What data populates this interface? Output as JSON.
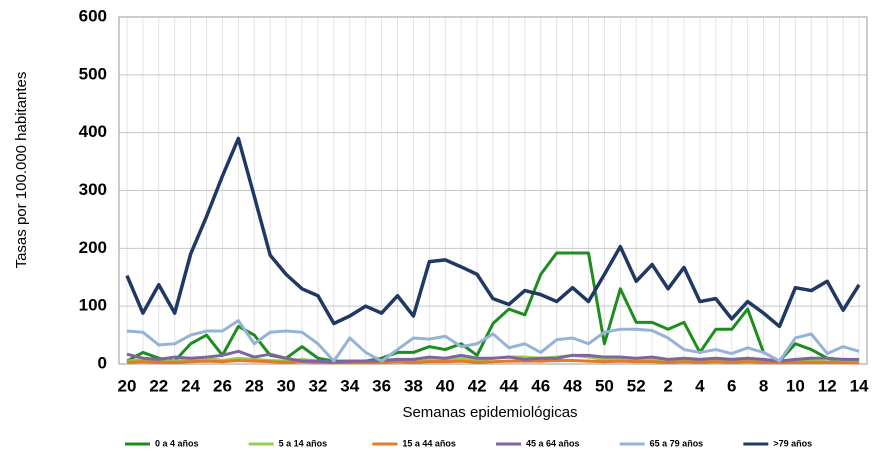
{
  "chart_data": {
    "type": "line",
    "y_label": "Tasas por 100.000 habitantes",
    "x_label": "Semanas epidemiológicas",
    "categories": [
      "20",
      null,
      "22",
      null,
      "24",
      null,
      "26",
      null,
      "28",
      null,
      "30",
      null,
      "32",
      null,
      "34",
      null,
      "36",
      null,
      "38",
      null,
      "40",
      null,
      "42",
      null,
      "44",
      null,
      "46",
      null,
      "48",
      null,
      "50",
      null,
      "52",
      null,
      "2",
      null,
      "4",
      null,
      "6",
      null,
      "8",
      null,
      "10",
      null,
      "12",
      null,
      "14"
    ],
    "ylim": [
      0,
      600
    ],
    "yticks": [
      0,
      100,
      200,
      300,
      400,
      500,
      600
    ],
    "grid": true,
    "legend": "bottom",
    "series": [
      {
        "name": "0 a 4 años",
        "color": "#1e8c1e",
        "values": [
          5,
          20,
          10,
          5,
          35,
          50,
          15,
          65,
          50,
          15,
          10,
          30,
          10,
          5,
          5,
          5,
          10,
          20,
          20,
          30,
          25,
          35,
          15,
          70,
          95,
          85,
          155,
          192,
          192,
          192,
          35,
          130,
          72,
          72,
          60,
          72,
          20,
          60,
          60,
          95,
          20,
          5,
          35,
          25,
          10,
          5,
          5
        ]
      },
      {
        "name": "5 a 14 años",
        "color": "#92d050",
        "values": [
          5,
          8,
          6,
          5,
          8,
          10,
          6,
          10,
          8,
          6,
          5,
          8,
          5,
          3,
          4,
          4,
          5,
          6,
          6,
          8,
          8,
          10,
          6,
          10,
          12,
          12,
          10,
          12,
          15,
          12,
          8,
          10,
          8,
          8,
          6,
          8,
          5,
          6,
          5,
          8,
          5,
          3,
          6,
          5,
          4,
          3,
          3
        ]
      },
      {
        "name": "15 a 44 años",
        "color": "#e07b28",
        "values": [
          3,
          4,
          3,
          3,
          4,
          5,
          4,
          6,
          5,
          4,
          3,
          4,
          3,
          2,
          2,
          2,
          3,
          4,
          3,
          4,
          4,
          5,
          3,
          4,
          5,
          5,
          5,
          6,
          6,
          5,
          4,
          5,
          4,
          4,
          3,
          4,
          3,
          4,
          3,
          4,
          3,
          2,
          3,
          3,
          3,
          2,
          2
        ]
      },
      {
        "name": "45 a 64 años",
        "color": "#8064a2",
        "values": [
          17,
          10,
          8,
          12,
          10,
          12,
          15,
          22,
          12,
          17,
          10,
          5,
          5,
          3,
          5,
          5,
          6,
          8,
          8,
          12,
          10,
          15,
          10,
          10,
          12,
          8,
          10,
          10,
          15,
          15,
          12,
          12,
          10,
          12,
          8,
          10,
          8,
          10,
          8,
          10,
          8,
          5,
          8,
          10,
          10,
          8,
          8
        ]
      },
      {
        "name": "65 a 79 años",
        "color": "#95b3d7",
        "values": [
          57,
          55,
          33,
          35,
          50,
          57,
          57,
          75,
          35,
          55,
          57,
          55,
          35,
          5,
          45,
          20,
          5,
          25,
          45,
          43,
          48,
          30,
          35,
          52,
          28,
          35,
          20,
          42,
          45,
          35,
          55,
          60,
          60,
          58,
          45,
          25,
          20,
          25,
          18,
          28,
          20,
          5,
          45,
          52,
          18,
          30,
          22
        ]
      },
      {
        "name": ">79 años",
        "color": "#1f3864",
        "values": [
          153,
          88,
          137,
          88,
          190,
          255,
          325,
          390,
          290,
          188,
          155,
          130,
          118,
          70,
          83,
          100,
          88,
          118,
          83,
          177,
          180,
          168,
          155,
          113,
          103,
          127,
          120,
          108,
          132,
          108,
          155,
          203,
          143,
          172,
          130,
          167,
          108,
          113,
          78,
          108,
          88,
          65,
          132,
          127,
          143,
          93,
          137
        ]
      }
    ]
  }
}
